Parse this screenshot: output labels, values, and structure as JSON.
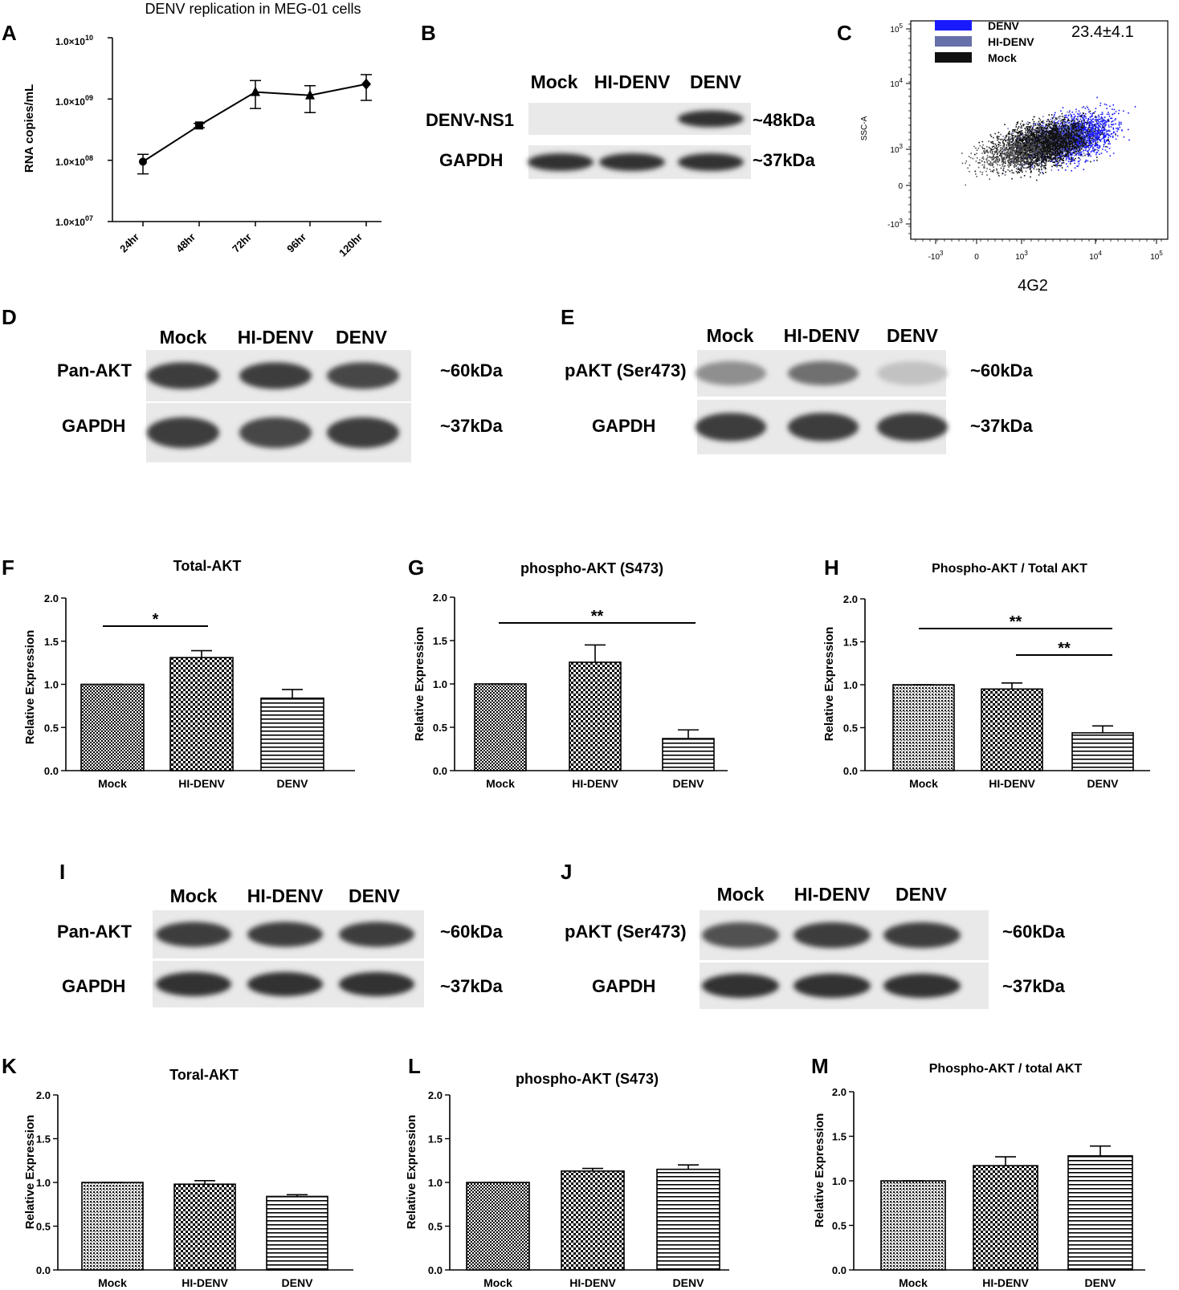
{
  "panels": {
    "A": "A",
    "B": "B",
    "C": "C",
    "D": "D",
    "E": "E",
    "F": "F",
    "G": "G",
    "H": "H",
    "I": "I",
    "J": "J",
    "K": "K",
    "L": "L",
    "M": "M"
  },
  "blots": {
    "B": {
      "lanes": [
        "Mock",
        "HI-DENV",
        "DENV"
      ],
      "rows": [
        {
          "label": "DENV-NS1",
          "kda": "~48kDa",
          "intensity": [
            0.0,
            0.0,
            0.9
          ]
        },
        {
          "label": "GAPDH",
          "kda": "~37kDa",
          "intensity": [
            0.9,
            0.9,
            0.9
          ]
        }
      ]
    },
    "D": {
      "lanes": [
        "Mock",
        "HI-DENV",
        "DENV"
      ],
      "rows": [
        {
          "label": "Pan-AKT",
          "kda": "~60kDa",
          "intensity": [
            0.85,
            0.85,
            0.8
          ]
        },
        {
          "label": "GAPDH",
          "kda": "~37kDa",
          "intensity": [
            0.85,
            0.8,
            0.85
          ]
        }
      ]
    },
    "E": {
      "lanes": [
        "Mock",
        "HI-DENV",
        "DENV"
      ],
      "rows": [
        {
          "label": "pAKT (Ser473)",
          "kda": "~60kDa",
          "intensity": [
            0.45,
            0.6,
            0.2
          ]
        },
        {
          "label": "GAPDH",
          "kda": "~37kDa",
          "intensity": [
            0.85,
            0.85,
            0.85
          ]
        }
      ]
    },
    "I": {
      "lanes": [
        "Mock",
        "HI-DENV",
        "DENV"
      ],
      "rows": [
        {
          "label": "Pan-AKT",
          "kda": "~60kDa",
          "intensity": [
            0.85,
            0.85,
            0.85
          ]
        },
        {
          "label": "GAPDH",
          "kda": "~37kDa",
          "intensity": [
            0.9,
            0.9,
            0.9
          ]
        }
      ]
    },
    "J": {
      "lanes": [
        "Mock",
        "HI-DENV",
        "DENV"
      ],
      "rows": [
        {
          "label": "pAKT (Ser473)",
          "kda": "~60kDa",
          "intensity": [
            0.75,
            0.85,
            0.85
          ]
        },
        {
          "label": "GAPDH",
          "kda": "~37kDa",
          "intensity": [
            0.9,
            0.9,
            0.9
          ]
        }
      ]
    }
  },
  "flow": {
    "legend": [
      "DENV",
      "HI-DENV",
      "Mock"
    ],
    "legend_colors": [
      "#1a1aff",
      "#6670aa",
      "#111111"
    ],
    "percent": "23.4±4.1",
    "xlabel": "4G2",
    "ylabel": "SSC-A",
    "xticks": [
      "-10",
      "0",
      "10",
      "10",
      "10"
    ],
    "xtick_exps": [
      "3",
      "",
      "3",
      "4",
      "5"
    ],
    "yticks": [
      "10",
      "10",
      "10",
      "0",
      "-10"
    ],
    "ytick_exps": [
      "5",
      "4",
      "3",
      "",
      "3"
    ]
  },
  "chart_data": [
    {
      "panel": "A",
      "type": "line",
      "title": "DENV replication in MEG-01 cells",
      "xlabel": "",
      "ylabel": "RNA copies/mL",
      "yscale": "log",
      "ylim": [
        10000000,
        10000000000
      ],
      "ytick_base": [
        "1.0×10",
        "1.0×10",
        "1.0×10",
        "1.0×10"
      ],
      "ytick_exps": [
        "07",
        "08",
        "09",
        "10"
      ],
      "categories": [
        "24hr",
        "48hr",
        "72hr",
        "96hr",
        "120hr"
      ],
      "values": [
        95000000,
        370000000,
        1300000000,
        1150000000,
        1750000000
      ],
      "errors_low": [
        60000000,
        340000000,
        700000000,
        600000000,
        950000000
      ],
      "errors_high": [
        125000000,
        400000000,
        2000000000,
        1650000000,
        2500000000
      ]
    },
    {
      "panel": "F",
      "type": "bar",
      "title": "Total-AKT",
      "xlabel": "",
      "ylabel": "Relative Expression",
      "ylim": [
        0,
        2.0
      ],
      "yticks": [
        "0.0",
        "0.5",
        "1.0",
        "1.5",
        "2.0"
      ],
      "categories": [
        "Mock",
        "HI-DENV",
        "DENV"
      ],
      "values": [
        1.0,
        1.31,
        0.84
      ],
      "errors": [
        0,
        0.08,
        0.1
      ],
      "significance": [
        {
          "from": 0,
          "to": 1,
          "label": "*"
        }
      ]
    },
    {
      "panel": "G",
      "type": "bar",
      "title": "phospho-AKT (S473)",
      "xlabel": "",
      "ylabel": "Relative Expression",
      "ylim": [
        0,
        2.0
      ],
      "yticks": [
        "0.0",
        "0.5",
        "1.0",
        "1.5",
        "2.0"
      ],
      "categories": [
        "Mock",
        "HI-DENV",
        "DENV"
      ],
      "values": [
        1.0,
        1.25,
        0.37
      ],
      "errors": [
        0,
        0.2,
        0.1
      ],
      "significance": [
        {
          "from": 0,
          "to": 2,
          "label": "**"
        }
      ]
    },
    {
      "panel": "H",
      "type": "bar",
      "title": "Phospho-AKT / Total AKT",
      "xlabel": "",
      "ylabel": "Relative Expression",
      "ylim": [
        0,
        2.0
      ],
      "yticks": [
        "0.0",
        "0.5",
        "1.0",
        "1.5",
        "2.0"
      ],
      "categories": [
        "Mock",
        "HI-DENV",
        "DENV"
      ],
      "values": [
        1.0,
        0.95,
        0.44
      ],
      "errors": [
        0,
        0.07,
        0.08
      ],
      "significance": [
        {
          "from": 0,
          "to": 2,
          "label": "**"
        },
        {
          "from": 1,
          "to": 2,
          "label": "**"
        }
      ]
    },
    {
      "panel": "K",
      "type": "bar",
      "title": "Toral-AKT",
      "xlabel": "",
      "ylabel": "Relative Expression",
      "ylim": [
        0,
        2.0
      ],
      "yticks": [
        "0.0",
        "0.5",
        "1.0",
        "1.5",
        "2.0"
      ],
      "categories": [
        "Mock",
        "HI-DENV",
        "DENV"
      ],
      "values": [
        1.0,
        0.98,
        0.84
      ],
      "errors": [
        0,
        0.04,
        0.02
      ],
      "significance": []
    },
    {
      "panel": "L",
      "type": "bar",
      "title": "phospho-AKT (S473)",
      "xlabel": "",
      "ylabel": "Relative Expression",
      "ylim": [
        0,
        2.0
      ],
      "yticks": [
        "0.0",
        "0.5",
        "1.0",
        "1.5",
        "2.0"
      ],
      "categories": [
        "Mock",
        "HI-DENV",
        "DENV"
      ],
      "values": [
        1.0,
        1.13,
        1.15
      ],
      "errors": [
        0,
        0.03,
        0.05
      ],
      "significance": []
    },
    {
      "panel": "M",
      "type": "bar",
      "title": "Phospho-AKT / total AKT",
      "xlabel": "",
      "ylabel": "Relative Expression",
      "ylim": [
        0,
        2.0
      ],
      "yticks": [
        "0.0",
        "0.5",
        "1.0",
        "1.5",
        "2.0"
      ],
      "categories": [
        "Mock",
        "HI-DENV",
        "DENV"
      ],
      "values": [
        1.0,
        1.17,
        1.28
      ],
      "errors": [
        0,
        0.1,
        0.11
      ],
      "significance": []
    }
  ]
}
